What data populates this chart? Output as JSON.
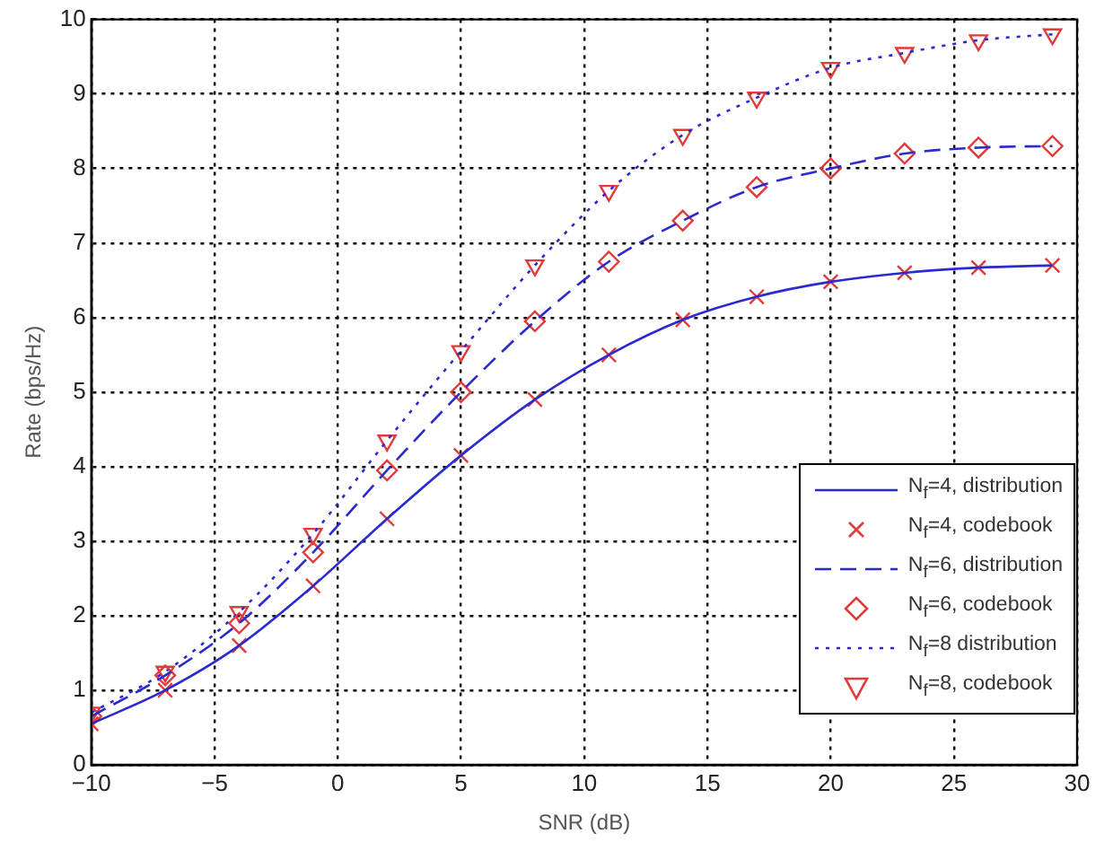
{
  "chart_data": {
    "type": "line",
    "xlabel": "SNR (dB)",
    "ylabel": "Rate (bps/Hz)",
    "x": [
      -10,
      -7,
      -4,
      -1,
      2,
      5,
      8,
      11,
      14,
      17,
      20,
      23,
      26,
      29
    ],
    "xlim": [
      -10,
      30
    ],
    "xticks": [
      -10,
      -5,
      0,
      5,
      10,
      15,
      20,
      25,
      30
    ],
    "ylim": [
      0,
      10
    ],
    "yticks": [
      0,
      1,
      2,
      3,
      4,
      5,
      6,
      7,
      8,
      9,
      10
    ],
    "grid": true,
    "legend": "bottom right",
    "series": [
      {
        "name": "N$_{f}$=4, distribution",
        "type": "line",
        "color": "#2a2ad0",
        "marker": "none",
        "line_style": "solid",
        "values": [
          0.55,
          1.0,
          1.6,
          2.4,
          3.3,
          4.15,
          4.9,
          5.5,
          5.97,
          6.28,
          6.48,
          6.6,
          6.67,
          6.7
        ]
      },
      {
        "name": "N$_{f}$=4, codebook",
        "type": "scatter",
        "color": "#e03a3a",
        "marker": "cross",
        "values": [
          0.55,
          1.0,
          1.6,
          2.4,
          3.3,
          4.15,
          4.9,
          5.5,
          5.97,
          6.28,
          6.48,
          6.6,
          6.67,
          6.7
        ]
      },
      {
        "name": "N$_{f}$=6, distribution",
        "type": "line",
        "color": "#2a2ad0",
        "marker": "none",
        "line_style": "dashed",
        "values": [
          0.65,
          1.2,
          1.9,
          2.85,
          3.95,
          5.0,
          5.95,
          6.75,
          7.3,
          7.75,
          8.0,
          8.2,
          8.28,
          8.3
        ]
      },
      {
        "name": "N$_{f}$=6, codebook",
        "type": "scatter",
        "color": "#e03a3a",
        "marker": "diamond",
        "values": [
          0.65,
          1.2,
          1.9,
          2.85,
          3.95,
          5.0,
          5.95,
          6.75,
          7.3,
          7.75,
          8.0,
          8.2,
          8.28,
          8.3
        ]
      },
      {
        "name": "N$_{f}$=8 distribution",
        "type": "line",
        "color": "#2a2ad0",
        "marker": "none",
        "line_style": "dotted",
        "values": [
          0.7,
          1.25,
          2.05,
          3.1,
          4.35,
          5.55,
          6.7,
          7.7,
          8.45,
          8.95,
          9.35,
          9.55,
          9.72,
          9.8
        ]
      },
      {
        "name": "N$_{f}$=8, codebook",
        "type": "scatter",
        "color": "#e03a3a",
        "marker": "triangle",
        "values": [
          0.7,
          1.25,
          2.05,
          3.1,
          4.35,
          5.55,
          6.7,
          7.7,
          8.45,
          8.95,
          9.35,
          9.55,
          9.72,
          9.8
        ]
      }
    ]
  }
}
